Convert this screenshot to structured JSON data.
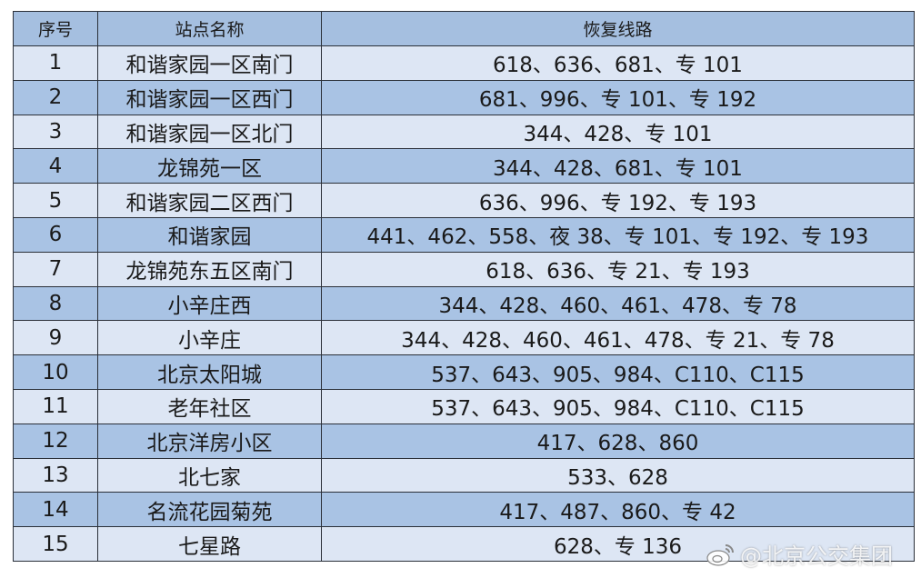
{
  "header": {
    "index": "序号",
    "station": "站点名称",
    "routes": "恢复线路"
  },
  "rows": [
    {
      "index": "1",
      "station": "和谐家园一区南门",
      "routes": "618、636、681、专 101"
    },
    {
      "index": "2",
      "station": "和谐家园一区西门",
      "routes": "681、996、专 101、专 192"
    },
    {
      "index": "3",
      "station": "和谐家园一区北门",
      "routes": "344、428、专 101"
    },
    {
      "index": "4",
      "station": "龙锦苑一区",
      "routes": "344、428、681、专 101"
    },
    {
      "index": "5",
      "station": "和谐家园二区西门",
      "routes": "636、996、专 192、专 193"
    },
    {
      "index": "6",
      "station": "和谐家园",
      "routes": "441、462、558、夜 38、专 101、专 192、专 193"
    },
    {
      "index": "7",
      "station": "龙锦苑东五区南门",
      "routes": "618、636、专 21、专 193"
    },
    {
      "index": "8",
      "station": "小辛庄西",
      "routes": "344、428、460、461、478、专 78"
    },
    {
      "index": "9",
      "station": "小辛庄",
      "routes": "344、428、460、461、478、专 21、专 78"
    },
    {
      "index": "10",
      "station": "北京太阳城",
      "routes": "537、643、905、984、C110、C115"
    },
    {
      "index": "11",
      "station": "老年社区",
      "routes": "537、643、905、984、C110、C115"
    },
    {
      "index": "12",
      "station": "北京洋房小区",
      "routes": "417、628、860"
    },
    {
      "index": "13",
      "station": "北七家",
      "routes": "533、628"
    },
    {
      "index": "14",
      "station": "名流花园菊苑",
      "routes": "417、487、860、专 42"
    },
    {
      "index": "15",
      "station": "七星路",
      "routes": "628、专 136"
    }
  ],
  "watermark": "@北京公交集团",
  "colors": {
    "header": "#a5bfe0",
    "row_light": "#dde6f4",
    "row_blue": "#a9c3e4"
  }
}
